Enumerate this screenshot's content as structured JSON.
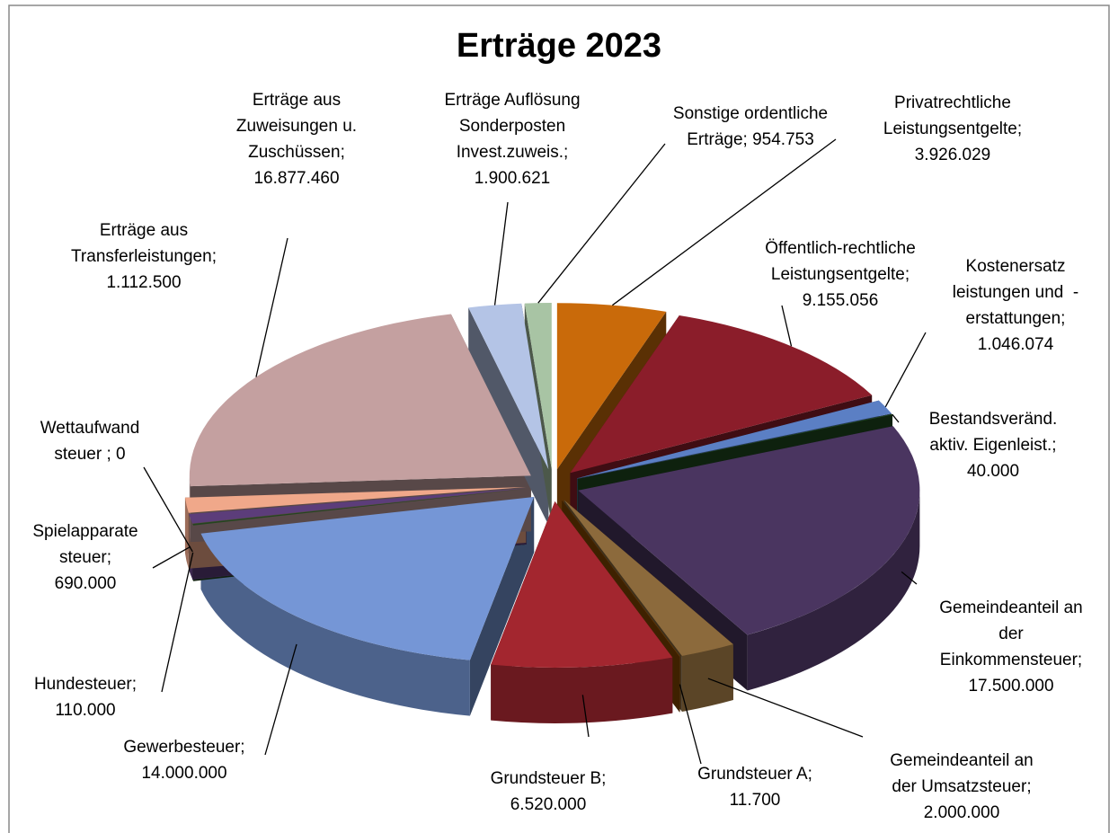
{
  "chart_data": {
    "type": "pie3d",
    "title": "Erträge 2023",
    "labels": [
      "Privatrechtliche\nLeistungsentgelte;\n3.926.029",
      "Öffentlich-rechtliche\nLeistungsentgelte;\n9.155.056",
      "Kostenersatz\nleistungen und  -\nerstattungen;\n1.046.074",
      "Bestandsveränd.\naktiv. Eigenleist.;\n40.000",
      "Gemeindeanteil an\nder\nEinkommensteuer;\n17.500.000",
      "Gemeindeanteil an\nder Umsatzsteuer;\n2.000.000",
      "Grundsteuer A;\n11.700",
      "Grundsteuer B;\n6.520.000",
      "Gewerbesteuer;\n14.000.000",
      "Hundesteuer;\n110.000",
      "Wettaufwand\nsteuer ; 0",
      "Spielapparate\nsteuer;\n690.000",
      "Erträge aus\nTransferleistungen;\n1.112.500",
      "Erträge aus\nZuweisungen u.\nZuschüssen;\n16.877.460",
      "Erträge Auflösung\nSonderposten\nInvest.zuweis.;\n1.900.621",
      "Sonstige ordentliche\nErträge; 954.753"
    ],
    "values": [
      3926029,
      9155056,
      1046074,
      40000,
      17500000,
      2000000,
      11700,
      6520000,
      14000000,
      110000,
      0,
      690000,
      1112500,
      16877460,
      1900621,
      954753
    ],
    "colors": [
      "#c96a0a",
      "#8b1d2a",
      "#5b7fc4",
      "#1f4a1f",
      "#4a3560",
      "#8c6a3c",
      "#8a4a00",
      "#a3262f",
      "#7596d6",
      "#24451f",
      "#6d4fa0",
      "#5c3d7a",
      "#f0a88a",
      "#c4a0a0",
      "#b4c4e6",
      "#a8c4a4"
    ]
  }
}
